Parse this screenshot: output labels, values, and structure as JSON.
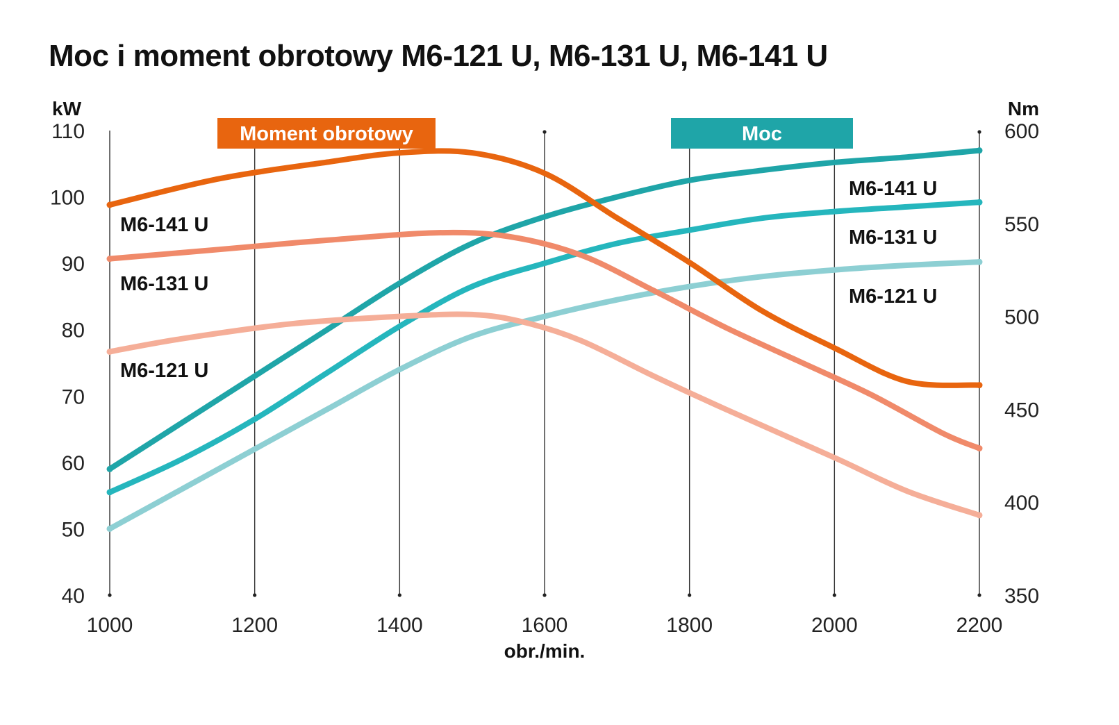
{
  "chart_data": {
    "type": "line",
    "title": "Moc i moment obrotowy M6-121 U, M6-131 U, M6-141 U",
    "xlabel": "obr./min.",
    "ylabel_left": "kW",
    "ylabel_right": "Nm",
    "xlim": [
      1000,
      2200
    ],
    "ylim_left": [
      40,
      110
    ],
    "ylim_right": [
      350,
      600
    ],
    "x_ticks": [
      "1000",
      "1200",
      "1400",
      "1600",
      "1800",
      "2000",
      "2200"
    ],
    "y_left_ticks": [
      "40",
      "50",
      "60",
      "70",
      "80",
      "90",
      "100",
      "110"
    ],
    "y_right_ticks": [
      "350",
      "400",
      "450",
      "500",
      "550",
      "600"
    ],
    "grid": "vertical",
    "groups": [
      {
        "label": "Moment obrotowy",
        "color": "#e8650f",
        "axis": "right"
      },
      {
        "label": "Moc",
        "color": "#1fa5a8",
        "axis": "left"
      }
    ],
    "series": [
      {
        "name": "M6-141 U",
        "group": "Moment obrotowy",
        "axis": "right",
        "color": "#e8650f",
        "x": [
          1000,
          1150,
          1300,
          1400,
          1500,
          1600,
          1700,
          1800,
          1900,
          2000,
          2100,
          2200
        ],
        "y": [
          560,
          574,
          583,
          588,
          588,
          577,
          553,
          529,
          503,
          483,
          465,
          463
        ]
      },
      {
        "name": "M6-131 U",
        "group": "Moment obrotowy",
        "axis": "right",
        "color": "#f08a6a",
        "x": [
          1000,
          1150,
          1300,
          1450,
          1550,
          1650,
          1750,
          1850,
          1950,
          2050,
          2150,
          2200
        ],
        "y": [
          531,
          536,
          541,
          545,
          543,
          533,
          514,
          494,
          476,
          458,
          437,
          429
        ]
      },
      {
        "name": "M6-121 U",
        "group": "Moment obrotowy",
        "axis": "right",
        "color": "#f5ae98",
        "x": [
          1000,
          1100,
          1250,
          1400,
          1500,
          1570,
          1650,
          1750,
          1850,
          2000,
          2100,
          2200
        ],
        "y": [
          481,
          488,
          496,
          500,
          501,
          497,
          487,
          468,
          450,
          424,
          406,
          393
        ]
      },
      {
        "name": "M6-141 U",
        "group": "Moc",
        "axis": "left",
        "color": "#1fa5a8",
        "x": [
          1000,
          1100,
          1200,
          1300,
          1400,
          1500,
          1600,
          1700,
          1800,
          1900,
          2000,
          2100,
          2200
        ],
        "y": [
          59,
          66,
          73,
          80,
          87,
          93,
          97,
          100,
          102.5,
          104,
          105.2,
          106,
          107
        ]
      },
      {
        "name": "M6-131 U",
        "group": "Moc",
        "axis": "left",
        "color": "#25b6bd",
        "x": [
          1000,
          1100,
          1200,
          1300,
          1400,
          1500,
          1600,
          1700,
          1800,
          1900,
          2000,
          2100,
          2200
        ],
        "y": [
          55.5,
          60.5,
          66.5,
          73.5,
          80.5,
          86.5,
          90,
          93,
          95,
          96.8,
          97.8,
          98.5,
          99.2
        ]
      },
      {
        "name": "M6-121 U",
        "group": "Moc",
        "axis": "left",
        "color": "#8dcfd3",
        "x": [
          1000,
          1100,
          1200,
          1300,
          1400,
          1500,
          1600,
          1700,
          1800,
          1900,
          2000,
          2100,
          2200
        ],
        "y": [
          50,
          56,
          62,
          68,
          74,
          79,
          82,
          84.5,
          86.5,
          88,
          89,
          89.7,
          90.2
        ]
      }
    ],
    "series_labels": [
      {
        "text": "M6-141 U",
        "side": "left",
        "series": 0
      },
      {
        "text": "M6-131 U",
        "side": "left",
        "series": 1
      },
      {
        "text": "M6-121 U",
        "side": "left",
        "series": 2
      },
      {
        "text": "M6-141 U",
        "side": "right",
        "series": 3
      },
      {
        "text": "M6-131 U",
        "side": "right",
        "series": 4
      },
      {
        "text": "M6-121 U",
        "side": "right",
        "series": 5
      }
    ]
  }
}
